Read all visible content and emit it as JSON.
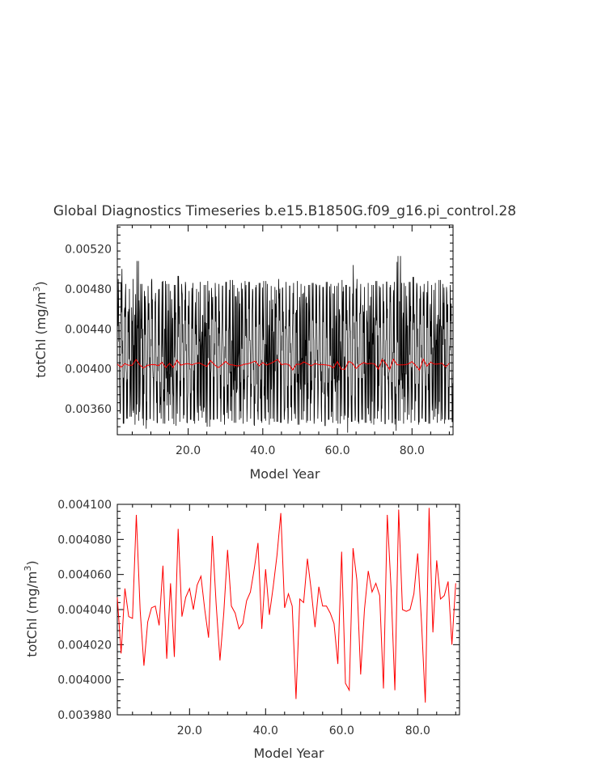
{
  "title": "Global Diagnostics Timeseries b.e15.B1850G.f09_g16.pi_control.28",
  "colors": {
    "monthly": "#000000",
    "annual": "#ff0000",
    "text": "#333333"
  },
  "chart_data": [
    {
      "type": "line",
      "xlabel": "Model Year",
      "ylabel_text": "totChl (mg/m",
      "ylabel_sup": "3",
      "ylabel_close": ")",
      "xlim": [
        1,
        91
      ],
      "ylim": [
        0.00334,
        0.00544
      ],
      "xticks": [
        20,
        40,
        60,
        80
      ],
      "xtick_labels": [
        "20.0",
        "40.0",
        "60.0",
        "80.0"
      ],
      "yticks": [
        0.0036,
        0.004,
        0.0044,
        0.0048,
        0.0052
      ],
      "ytick_labels": [
        "0.00360",
        "0.00400",
        "0.00440",
        "0.00480",
        "0.00520"
      ],
      "series": [
        {
          "color": "#000000",
          "values_monthly_sample": {
            "note_free": true,
            "years": [
              1,
              2,
              3,
              4,
              5,
              6,
              7,
              8,
              9,
              10,
              11,
              12,
              13,
              14,
              15,
              16,
              17,
              18,
              19,
              20,
              21,
              22,
              23,
              24,
              25,
              26,
              27,
              28,
              29,
              30,
              31,
              32,
              33,
              34,
              35,
              36,
              37,
              38,
              39,
              40,
              41,
              42,
              43,
              44,
              45,
              46,
              47,
              48,
              49,
              50,
              51,
              52,
              53,
              54,
              55,
              56,
              57,
              58,
              59,
              60,
              61,
              62,
              63,
              64,
              65,
              66,
              67,
              68,
              69,
              70,
              71,
              72,
              73,
              74,
              75,
              76,
              77,
              78,
              79,
              80,
              81,
              82,
              83,
              84,
              85,
              86,
              87,
              88,
              89,
              90
            ],
            "max": [
              0.0049,
              0.005,
              0.00485,
              0.0048,
              0.0049,
              0.00508,
              0.00485,
              0.00478,
              0.00483,
              0.0049,
              0.00476,
              0.0048,
              0.00488,
              0.00485,
              0.00478,
              0.00484,
              0.00493,
              0.00485,
              0.00487,
              0.00478,
              0.00486,
              0.0048,
              0.00487,
              0.00484,
              0.00488,
              0.00481,
              0.00486,
              0.00485,
              0.00483,
              0.00487,
              0.00489,
              0.00484,
              0.00481,
              0.00486,
              0.00488,
              0.00487,
              0.0048,
              0.00484,
              0.00486,
              0.00488,
              0.00485,
              0.00483,
              0.00482,
              0.0049,
              0.00481,
              0.00487,
              0.00483,
              0.00486,
              0.00488,
              0.00485,
              0.00483,
              0.00484,
              0.00486,
              0.00485,
              0.00484,
              0.00482,
              0.00487,
              0.00485,
              0.00483,
              0.00486,
              0.00489,
              0.00484,
              0.00482,
              0.00504,
              0.0049,
              0.00485,
              0.00482,
              0.00486,
              0.00484,
              0.00488,
              0.00483,
              0.00485,
              0.00487,
              0.00484,
              0.00487,
              0.00513,
              0.00486,
              0.00483,
              0.00487,
              0.00492,
              0.00486,
              0.00483,
              0.00485,
              0.00488,
              0.00484,
              0.00486,
              0.00489,
              0.00485,
              0.00482,
              0.00484
            ],
            "min": [
              0.00355,
              0.00345,
              0.0035,
              0.00352,
              0.00344,
              0.00348,
              0.0035,
              0.0034,
              0.0035,
              0.00348,
              0.00346,
              0.0035,
              0.00345,
              0.00348,
              0.0035,
              0.00343,
              0.00347,
              0.0035,
              0.00346,
              0.00349,
              0.00345,
              0.00348,
              0.00351,
              0.00346,
              0.00342,
              0.00349,
              0.0035,
              0.00347,
              0.00344,
              0.0035,
              0.00348,
              0.00346,
              0.00349,
              0.00345,
              0.00347,
              0.0035,
              0.00343,
              0.00349,
              0.00346,
              0.00348,
              0.00344,
              0.0035,
              0.00347,
              0.00346,
              0.00349,
              0.00345,
              0.00348,
              0.0035,
              0.00344,
              0.00349,
              0.00346,
              0.00348,
              0.00345,
              0.0035,
              0.00347,
              0.00343,
              0.00349,
              0.00346,
              0.00348,
              0.00345,
              0.00349,
              0.00336,
              0.00347,
              0.00348,
              0.00345,
              0.00349,
              0.00346,
              0.00348,
              0.00344,
              0.0035,
              0.00347,
              0.00345,
              0.00349,
              0.00346,
              0.00338,
              0.00348,
              0.00345,
              0.00349,
              0.00346,
              0.00348,
              0.00344,
              0.0035,
              0.00347,
              0.00345,
              0.00349,
              0.00346,
              0.00348,
              0.00345,
              0.00349,
              0.00347
            ]
          }
        },
        {
          "color": "#ff0000",
          "x": [
            1,
            2,
            3,
            4,
            5,
            6,
            7,
            8,
            9,
            10,
            11,
            12,
            13,
            14,
            15,
            16,
            17,
            18,
            19,
            20,
            21,
            22,
            23,
            24,
            25,
            26,
            27,
            28,
            29,
            30,
            31,
            32,
            33,
            34,
            35,
            36,
            37,
            38,
            39,
            40,
            41,
            42,
            43,
            44,
            45,
            46,
            47,
            48,
            49,
            50,
            51,
            52,
            53,
            54,
            55,
            56,
            57,
            58,
            59,
            60,
            61,
            62,
            63,
            64,
            65,
            66,
            67,
            68,
            69,
            70,
            71,
            72,
            73,
            74,
            75,
            76,
            77,
            78,
            79,
            80,
            81,
            82,
            83,
            84,
            85,
            86,
            87,
            88,
            89,
            90
          ],
          "y": [
            0.004047,
            0.004015,
            0.004052,
            0.004036,
            0.004035,
            0.004094,
            0.00404,
            0.004008,
            0.004033,
            0.004041,
            0.004042,
            0.004031,
            0.004065,
            0.004012,
            0.004055,
            0.004013,
            0.004086,
            0.004036,
            0.004047,
            0.004052,
            0.00404,
            0.004054,
            0.004059,
            0.00404,
            0.004024,
            0.004082,
            0.004043,
            0.004011,
            0.004038,
            0.004074,
            0.004042,
            0.004038,
            0.004029,
            0.004032,
            0.004045,
            0.00405,
            0.004063,
            0.004078,
            0.004029,
            0.004063,
            0.004037,
            0.004053,
            0.004071,
            0.004095,
            0.004041,
            0.004049,
            0.004042,
            0.003989,
            0.004046,
            0.004044,
            0.004069,
            0.004051,
            0.00403,
            0.004053,
            0.004042,
            0.004042,
            0.004038,
            0.004032,
            0.004009,
            0.004073,
            0.003998,
            0.003994,
            0.004075,
            0.004057,
            0.004003,
            0.00404,
            0.004062,
            0.00405,
            0.004055,
            0.004048,
            0.003995,
            0.004094,
            0.004052,
            0.003994,
            0.004097,
            0.00404,
            0.004039,
            0.00404,
            0.004049,
            0.004072,
            0.004033,
            0.003987,
            0.004098,
            0.004027,
            0.004068,
            0.004046,
            0.004048,
            0.004056,
            0.00402,
            0.004055
          ]
        }
      ]
    },
    {
      "type": "line",
      "xlabel": "Model Year",
      "ylabel_text": "totChl (mg/m",
      "ylabel_sup": "3",
      "ylabel_close": ")",
      "xlim": [
        1,
        91
      ],
      "ylim": [
        0.00398,
        0.0041
      ],
      "xticks": [
        20,
        40,
        60,
        80
      ],
      "xtick_labels": [
        "20.0",
        "40.0",
        "60.0",
        "80.0"
      ],
      "yticks": [
        0.00398,
        0.004,
        0.00402,
        0.00404,
        0.00406,
        0.00408,
        0.0041
      ],
      "ytick_labels": [
        "0.003980",
        "0.004000",
        "0.004020",
        "0.004040",
        "0.004060",
        "0.004080",
        "0.004100"
      ],
      "series": [
        {
          "color": "#ff0000",
          "x": [
            1,
            2,
            3,
            4,
            5,
            6,
            7,
            8,
            9,
            10,
            11,
            12,
            13,
            14,
            15,
            16,
            17,
            18,
            19,
            20,
            21,
            22,
            23,
            24,
            25,
            26,
            27,
            28,
            29,
            30,
            31,
            32,
            33,
            34,
            35,
            36,
            37,
            38,
            39,
            40,
            41,
            42,
            43,
            44,
            45,
            46,
            47,
            48,
            49,
            50,
            51,
            52,
            53,
            54,
            55,
            56,
            57,
            58,
            59,
            60,
            61,
            62,
            63,
            64,
            65,
            66,
            67,
            68,
            69,
            70,
            71,
            72,
            73,
            74,
            75,
            76,
            77,
            78,
            79,
            80,
            81,
            82,
            83,
            84,
            85,
            86,
            87,
            88,
            89,
            90
          ],
          "y": [
            0.004047,
            0.004015,
            0.004052,
            0.004036,
            0.004035,
            0.004094,
            0.00404,
            0.004008,
            0.004033,
            0.004041,
            0.004042,
            0.004031,
            0.004065,
            0.004012,
            0.004055,
            0.004013,
            0.004086,
            0.004036,
            0.004047,
            0.004052,
            0.00404,
            0.004054,
            0.004059,
            0.00404,
            0.004024,
            0.004082,
            0.004043,
            0.004011,
            0.004038,
            0.004074,
            0.004042,
            0.004038,
            0.004029,
            0.004032,
            0.004045,
            0.00405,
            0.004063,
            0.004078,
            0.004029,
            0.004063,
            0.004037,
            0.004053,
            0.004071,
            0.004095,
            0.004041,
            0.004049,
            0.004042,
            0.003989,
            0.004046,
            0.004044,
            0.004069,
            0.004051,
            0.00403,
            0.004053,
            0.004042,
            0.004042,
            0.004038,
            0.004032,
            0.004009,
            0.004073,
            0.003998,
            0.003994,
            0.004075,
            0.004057,
            0.004003,
            0.00404,
            0.004062,
            0.00405,
            0.004055,
            0.004048,
            0.003995,
            0.004094,
            0.004052,
            0.003994,
            0.004097,
            0.00404,
            0.004039,
            0.00404,
            0.004049,
            0.004072,
            0.004033,
            0.003987,
            0.004098,
            0.004027,
            0.004068,
            0.004046,
            0.004048,
            0.004056,
            0.00402,
            0.004055
          ]
        }
      ]
    }
  ]
}
